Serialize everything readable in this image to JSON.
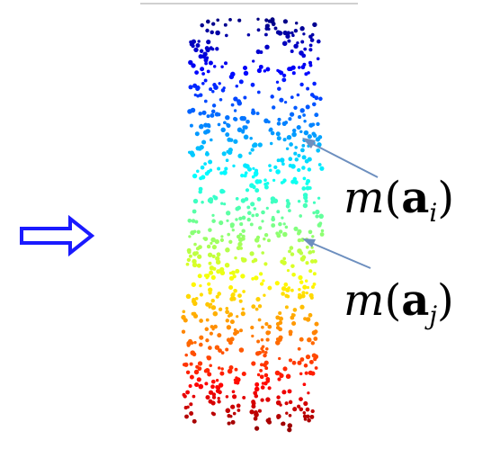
{
  "arrow": {
    "icon": "hollow-right-arrow-icon",
    "color": "#1a1aff"
  },
  "top_line_color": "#d0d0d0",
  "pointer_color": "#6d8fbf",
  "colormap": "jet",
  "labels": [
    {
      "func": "m",
      "open": "(",
      "vec": "a",
      "sub": "i",
      "close": ")"
    },
    {
      "func": "m",
      "open": "(",
      "vec": "a",
      "sub": "j",
      "close": ")"
    }
  ]
}
